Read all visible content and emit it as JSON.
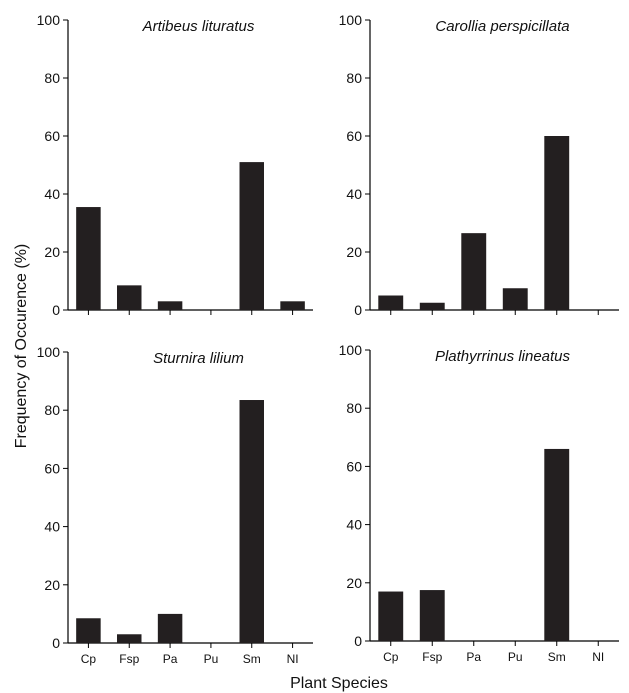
{
  "figure": {
    "ylabel": "Frequency of Occurence (%)",
    "xlabel": "Plant Species"
  },
  "chart_data": [
    {
      "type": "bar",
      "title": "Artibeus lituratus",
      "categories": [
        "Cp",
        "Fsp",
        "Pa",
        "Pu",
        "Sm",
        "NI"
      ],
      "values": [
        35.5,
        8.5,
        3,
        0,
        51,
        3
      ],
      "ylim": [
        0,
        100
      ],
      "yticks": [
        0,
        20,
        40,
        60,
        80,
        100
      ],
      "show_category_labels": false,
      "bar_color": "#231f20"
    },
    {
      "type": "bar",
      "title": "Carollia perspicillata",
      "categories": [
        "Cp",
        "Fsp",
        "Pa",
        "Pu",
        "Sm",
        "NI"
      ],
      "values": [
        5,
        2.5,
        26.5,
        7.5,
        60,
        0
      ],
      "ylim": [
        0,
        100
      ],
      "yticks": [
        0,
        20,
        40,
        60,
        80,
        100
      ],
      "show_category_labels": false,
      "bar_color": "#231f20"
    },
    {
      "type": "bar",
      "title": "Sturnira lilium",
      "categories": [
        "Cp",
        "Fsp",
        "Pa",
        "Pu",
        "Sm",
        "NI"
      ],
      "values": [
        8.5,
        3,
        10,
        0,
        83.5,
        0
      ],
      "ylim": [
        0,
        100
      ],
      "yticks": [
        0,
        20,
        40,
        60,
        80,
        100
      ],
      "show_category_labels": true,
      "bar_color": "#231f20"
    },
    {
      "type": "bar",
      "title": "Plathyrrinus lineatus",
      "categories": [
        "Cp",
        "Fsp",
        "Pa",
        "Pu",
        "Sm",
        "NI"
      ],
      "values": [
        17,
        17.5,
        0,
        0,
        66,
        0
      ],
      "ylim": [
        0,
        100
      ],
      "yticks": [
        0,
        20,
        40,
        60,
        80,
        100
      ],
      "show_category_labels": true,
      "bar_color": "#231f20"
    }
  ]
}
